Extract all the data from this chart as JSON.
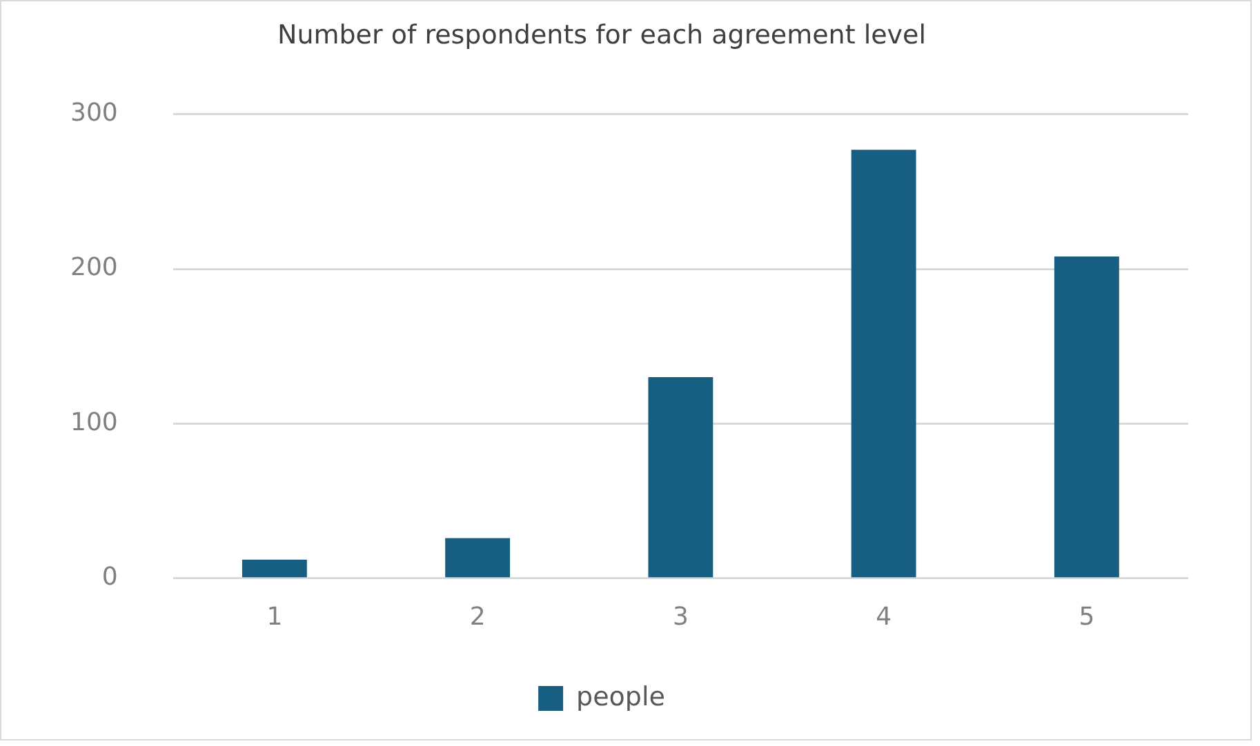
{
  "chart_data": {
    "type": "bar",
    "title": "Number of respondents for each agreement level",
    "categories": [
      "1",
      "2",
      "3",
      "4",
      "5"
    ],
    "series": [
      {
        "name": "people",
        "color": "#175f82",
        "values": [
          12,
          26,
          130,
          277,
          208
        ]
      }
    ],
    "ylim": [
      0,
      300
    ],
    "yticks": [
      0,
      100,
      200,
      300
    ],
    "grid": "y",
    "legend": "bottom"
  }
}
